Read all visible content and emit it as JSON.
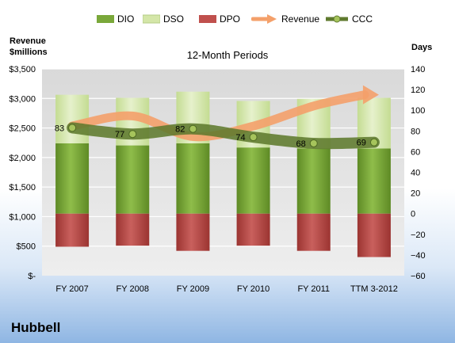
{
  "chart_data": {
    "type": "bar",
    "title": "12-Month Periods",
    "company": "Hubbell",
    "categories": [
      "FY 2007",
      "FY 2008",
      "FY 2009",
      "FY 2010",
      "FY 2011",
      "TTM 3-2012"
    ],
    "left_axis": {
      "label_line1": "Revenue",
      "label_line2": "$millions",
      "min": 0,
      "max": 3500,
      "step": 500,
      "tick_labels": [
        "$-",
        "$500",
        "$1,000",
        "$1,500",
        "$2,000",
        "$2,500",
        "$3,000",
        "$3,500"
      ]
    },
    "right_axis": {
      "label": "Days",
      "min": -60,
      "max": 140,
      "step": 20
    },
    "legend": [
      "DIO",
      "DSO",
      "DPO",
      "Revenue",
      "CCC"
    ],
    "legend_position": "top",
    "series": [
      {
        "name": "DIO",
        "kind": "bar-days",
        "color": "#7aa83a",
        "values": [
          68,
          66,
          68,
          64,
          63,
          63
        ]
      },
      {
        "name": "DSO",
        "kind": "bar-days",
        "color": "#d4e6a8",
        "values": [
          47,
          46,
          50,
          45,
          48,
          49
        ]
      },
      {
        "name": "DPO",
        "kind": "bar-days-negative",
        "color": "#c0504d",
        "values": [
          -32,
          -31,
          -36,
          -31,
          -36,
          -42
        ]
      },
      {
        "name": "Revenue",
        "kind": "line-left-axis",
        "color": "#f4a06a",
        "values": [
          2534,
          2704,
          2355,
          2532,
          2872,
          3063
        ]
      },
      {
        "name": "CCC",
        "kind": "line-right-axis",
        "color": "#5f7a2e",
        "values": [
          83,
          77,
          82,
          74,
          68,
          69
        ]
      }
    ],
    "data_labels": [
      "83",
      "77",
      "82",
      "74",
      "68",
      "69"
    ],
    "grid": true
  }
}
